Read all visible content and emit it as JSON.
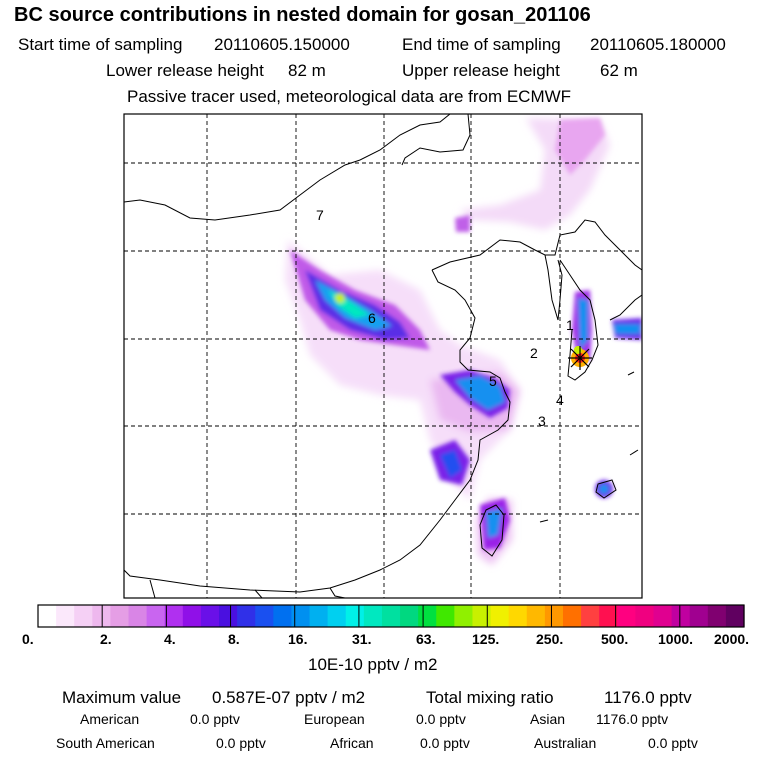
{
  "title": "BC  source contributions in nested domain for gosan_201106",
  "header": {
    "start_label": "Start time of sampling",
    "start_value": "20110605.150000",
    "end_label": "End time of sampling",
    "end_value": "20110605.180000",
    "lower_label": "Lower release height",
    "lower_value": "82 m",
    "upper_label": "Upper release height",
    "upper_value": "62 m",
    "note": "Passive tracer used, meteorological data are from ECMWF"
  },
  "map": {
    "region_labels": [
      "1",
      "2",
      "3",
      "4",
      "5",
      "6",
      "7"
    ]
  },
  "colorbar": {
    "colors": [
      "#ffffff",
      "#fbe8fb",
      "#f5d0f5",
      "#eeb8ee",
      "#e59ee5",
      "#d985e6",
      "#c965f0",
      "#b030f0",
      "#9010e8",
      "#6a10e8",
      "#4a10e0",
      "#3030e8",
      "#1a50f0",
      "#0070f0",
      "#0090f0",
      "#00b0f0",
      "#00d0f0",
      "#00f0e8",
      "#00e8c0",
      "#00e0a0",
      "#00d880",
      "#00e040",
      "#40e800",
      "#90f000",
      "#c8f000",
      "#f0f000",
      "#ffd800",
      "#ffb800",
      "#ff9800",
      "#ff7000",
      "#ff4040",
      "#ff1050",
      "#ff0080",
      "#f00080",
      "#e00090",
      "#c000a0",
      "#a00090",
      "#800070",
      "#600060"
    ],
    "tick_labels": [
      "0.",
      "2.",
      "4.",
      "8.",
      "16.",
      "31.",
      "63.",
      "125.",
      "250.",
      "500.",
      "1000.",
      "2000."
    ],
    "unit": "10E-10 pptv / m2"
  },
  "stats": {
    "max_label": "Maximum value",
    "max_value": "0.587E-07 pptv / m2",
    "total_label": "Total mixing ratio",
    "total_value": "1176.0 pptv",
    "rows": [
      [
        {
          "name": "American",
          "value": "0.0 pptv"
        },
        {
          "name": "European",
          "value": "0.0 pptv"
        },
        {
          "name": "Asian",
          "value": "1176.0 pptv"
        }
      ],
      [
        {
          "name": "South American",
          "value": "0.0 pptv"
        },
        {
          "name": "African",
          "value": "0.0 pptv"
        },
        {
          "name": "Australian",
          "value": "0.0 pptv"
        }
      ]
    ]
  }
}
